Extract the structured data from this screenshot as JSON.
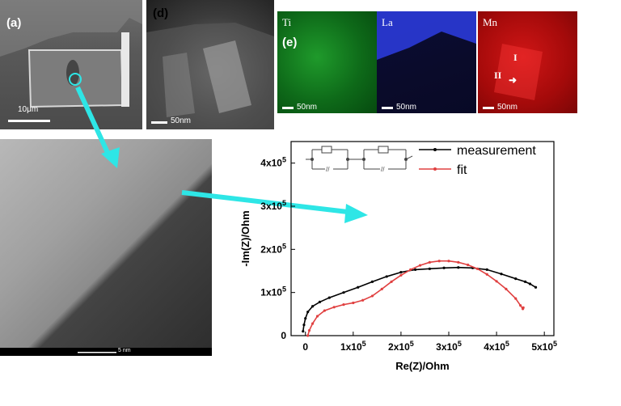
{
  "panels": {
    "a": {
      "label": "(a)",
      "scale": "10μm"
    },
    "d": {
      "label": "(d)",
      "scale": "50nm"
    },
    "e": {
      "label": "(e)",
      "maps": [
        {
          "element": "Ti",
          "scale": "50nm"
        },
        {
          "element": "La",
          "scale": "50nm"
        },
        {
          "element": "Mn",
          "scale": "50nm",
          "markers": [
            "I",
            "II"
          ]
        }
      ]
    },
    "hrtem": {
      "scale": "5 nm"
    }
  },
  "colors": {
    "arrow": "#2ee6e6",
    "measurement": "#000000",
    "fit": "#e04040"
  },
  "chart_data": {
    "type": "line",
    "xlabel": "Re(Z)/Ohm",
    "ylabel": "-Im(Z)/Ohm",
    "xlim": [
      -30000,
      520000
    ],
    "ylim": [
      0,
      450000
    ],
    "x_ticks": [
      0,
      100000,
      200000,
      300000,
      400000,
      500000
    ],
    "y_ticks": [
      0,
      100000,
      200000,
      300000,
      400000
    ],
    "x_tick_labels": [
      {
        "base": "0",
        "exp": ""
      },
      {
        "base": "1x10",
        "exp": "5"
      },
      {
        "base": "2x10",
        "exp": "5"
      },
      {
        "base": "3x10",
        "exp": "5"
      },
      {
        "base": "4x10",
        "exp": "5"
      },
      {
        "base": "5x10",
        "exp": "5"
      }
    ],
    "y_tick_labels": [
      {
        "base": "0",
        "exp": ""
      },
      {
        "base": "1x10",
        "exp": "5"
      },
      {
        "base": "2x10",
        "exp": "5"
      },
      {
        "base": "3x10",
        "exp": "5"
      },
      {
        "base": "4x10",
        "exp": "5"
      }
    ],
    "legend_position": "top-right",
    "series": [
      {
        "name": "measurement",
        "x": [
          -5000,
          -3000,
          0,
          5000,
          15000,
          30000,
          50000,
          80000,
          110000,
          140000,
          170000,
          200000,
          230000,
          260000,
          290000,
          320000,
          350000,
          380000,
          410000,
          440000,
          460000,
          470000,
          482000
        ],
        "y": [
          10000,
          25000,
          40000,
          55000,
          68000,
          78000,
          88000,
          100000,
          112000,
          125000,
          137000,
          147000,
          153000,
          155000,
          157000,
          158000,
          157000,
          153000,
          143000,
          132000,
          125000,
          120000,
          112000
        ]
      },
      {
        "name": "fit",
        "x": [
          5000,
          8000,
          15000,
          25000,
          40000,
          60000,
          80000,
          100000,
          120000,
          140000,
          160000,
          180000,
          200000,
          220000,
          240000,
          260000,
          280000,
          300000,
          320000,
          340000,
          360000,
          380000,
          400000,
          420000,
          440000,
          450000,
          455000,
          456000
        ],
        "y": [
          0,
          12000,
          28000,
          45000,
          58000,
          66000,
          72000,
          76000,
          82000,
          92000,
          108000,
          125000,
          140000,
          153000,
          163000,
          170000,
          173000,
          173000,
          170000,
          164000,
          155000,
          142000,
          126000,
          108000,
          86000,
          70000,
          62000,
          65000
        ]
      }
    ]
  }
}
